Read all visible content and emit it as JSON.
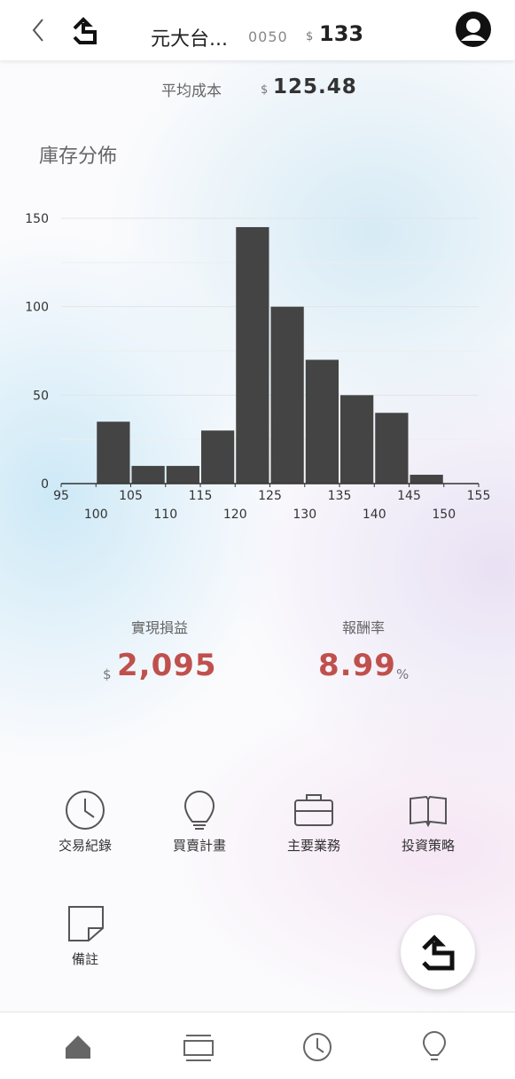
{
  "header": {
    "name": "元大台...",
    "code": "0050",
    "currency": "$",
    "price": 133
  },
  "avg_cost": {
    "label": "平均成本",
    "currency": "$",
    "value": 125.48
  },
  "chart_data": {
    "type": "histogram",
    "title": "庫存分佈",
    "color": "#444444",
    "bins": [
      100,
      105,
      110,
      115,
      120,
      125,
      130,
      135,
      140,
      145,
      150
    ],
    "values": [
      35,
      10,
      10,
      30,
      145,
      100,
      70,
      50,
      40,
      5
    ],
    "xlim": [
      95,
      155
    ],
    "xticks": [
      95,
      100,
      105,
      110,
      115,
      120,
      125,
      130,
      135,
      140,
      145,
      150,
      155
    ],
    "ylim": [
      0,
      150
    ],
    "yticks": [
      0,
      50,
      100,
      150
    ],
    "yminorticks": [
      25,
      75,
      125
    ],
    "grid": true
  },
  "stats": {
    "realized": {
      "label": "實現損益",
      "currency": "$",
      "value": {
        "value": 2095,
        "label": "2,095"
      }
    },
    "return": {
      "label": "報酬率",
      "value": 8.99,
      "unit": "%"
    }
  },
  "menu": [
    "交易紀錄",
    "買賣計畫",
    "主要業務",
    "投資策略",
    "備註"
  ]
}
